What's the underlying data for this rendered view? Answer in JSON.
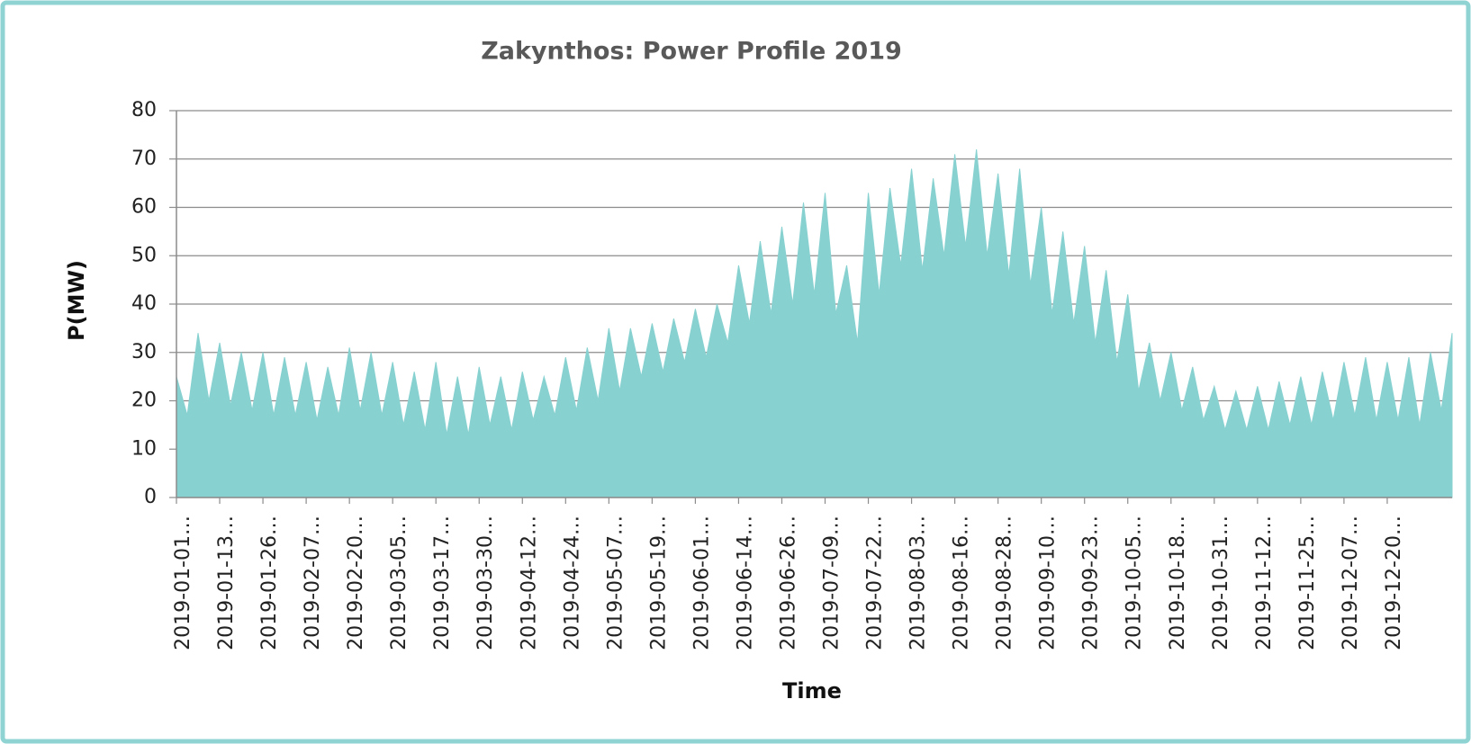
{
  "chart_data": {
    "type": "area",
    "title": "Zakynthos: Power Profile 2019",
    "xlabel": "Time",
    "ylabel": "P(MW)",
    "color": "#88d1d1",
    "grid": true,
    "ylim": [
      0,
      80
    ],
    "yticks": [
      0,
      10,
      20,
      30,
      40,
      50,
      60,
      70,
      80
    ],
    "categories": [
      "2019-01-01…",
      null,
      null,
      null,
      "2019-01-13…",
      null,
      null,
      null,
      "2019-01-26…",
      null,
      null,
      null,
      "2019-02-07…",
      null,
      null,
      null,
      "2019-02-20…",
      null,
      null,
      null,
      "2019-03-05…",
      null,
      null,
      null,
      "2019-03-17…",
      null,
      null,
      null,
      "2019-03-30…",
      null,
      null,
      null,
      "2019-04-12…",
      null,
      null,
      null,
      "2019-04-24…",
      null,
      null,
      null,
      "2019-05-07…",
      null,
      null,
      null,
      "2019-05-19…",
      null,
      null,
      null,
      "2019-06-01…",
      null,
      null,
      null,
      "2019-06-14…",
      null,
      null,
      null,
      "2019-06-26…",
      null,
      null,
      null,
      "2019-07-09…",
      null,
      null,
      null,
      "2019-07-22…",
      null,
      null,
      null,
      "2019-08-03…",
      null,
      null,
      null,
      "2019-08-16…",
      null,
      null,
      null,
      "2019-08-28…",
      null,
      null,
      null,
      "2019-09-10…",
      null,
      null,
      null,
      "2019-09-23…",
      null,
      null,
      null,
      "2019-10-05…",
      null,
      null,
      null,
      "2019-10-18…",
      null,
      null,
      null,
      "2019-10-31…",
      null,
      null,
      null,
      "2019-11-12…",
      null,
      null,
      null,
      "2019-11-25…",
      null,
      null,
      null,
      "2019-12-07…",
      null,
      null,
      null,
      "2019-12-20…",
      null,
      null,
      null,
      null,
      null,
      null
    ],
    "values": [
      25,
      17,
      34,
      20,
      32,
      19,
      30,
      18,
      30,
      17,
      29,
      17,
      28,
      16,
      27,
      17,
      31,
      18,
      30,
      17,
      28,
      15,
      26,
      14,
      28,
      13,
      25,
      13,
      27,
      15,
      25,
      14,
      26,
      16,
      25,
      17,
      29,
      18,
      31,
      20,
      35,
      22,
      35,
      25,
      36,
      26,
      37,
      28,
      39,
      29,
      40,
      32,
      48,
      36,
      53,
      38,
      56,
      40,
      61,
      42,
      63,
      38,
      48,
      32,
      63,
      42,
      64,
      48,
      68,
      47,
      66,
      50,
      71,
      52,
      72,
      50,
      67,
      46,
      68,
      44,
      60,
      38,
      55,
      36,
      52,
      32,
      47,
      28,
      42,
      22,
      32,
      20,
      30,
      18,
      27,
      16,
      23,
      14,
      22,
      14,
      23,
      14,
      24,
      15,
      25,
      15,
      26,
      16,
      28,
      17,
      29,
      16,
      28,
      16,
      29,
      15,
      30,
      18,
      34
    ]
  }
}
